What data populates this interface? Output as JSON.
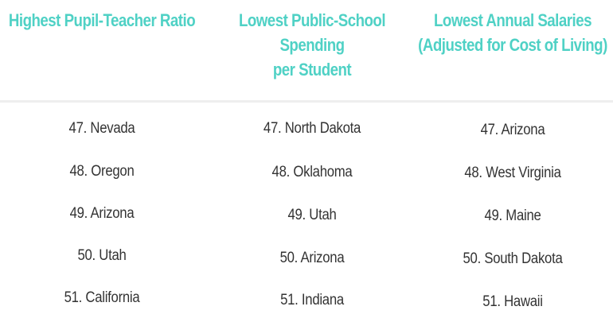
{
  "columns": [
    {
      "title": "Highest Pupil-Teacher Ratio",
      "items": [
        "47. Nevada",
        "48. Oregon",
        "49. Arizona",
        "50. Utah",
        "51. California"
      ]
    },
    {
      "title": "Lowest Public-School Spending\nper Student",
      "items": [
        "47. North Dakota",
        "48. Oklahoma",
        "49. Utah",
        "50. Arizona",
        "51. Indiana"
      ]
    },
    {
      "title": "Lowest Annual Salaries\n(Adjusted for Cost of Living)",
      "items": [
        "47. Arizona",
        "48. West Virginia",
        "49. Maine",
        "50. South Dakota",
        "51. Hawaii"
      ]
    }
  ],
  "colors": {
    "heading": "#4fd1c5",
    "text": "#333333",
    "divider": "#eeeeee"
  }
}
